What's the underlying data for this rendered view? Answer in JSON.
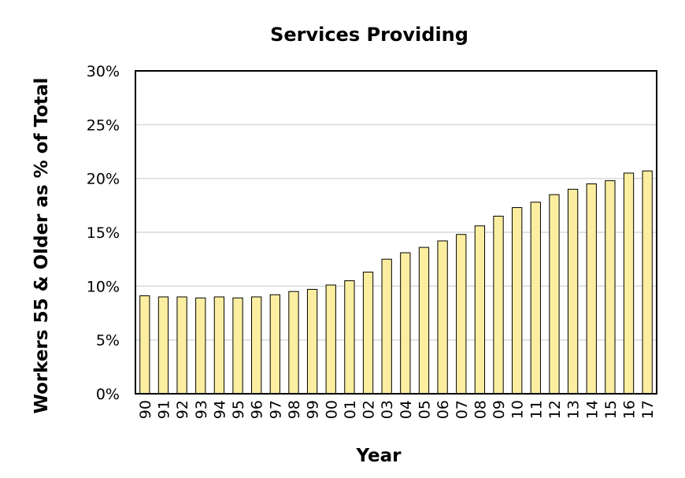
{
  "chart_data": {
    "type": "bar",
    "title": "Services Providing",
    "xlabel": "Year",
    "ylabel": "Workers 55 & Older as % of Total",
    "categories": [
      "90",
      "91",
      "92",
      "93",
      "94",
      "95",
      "96",
      "97",
      "98",
      "99",
      "00",
      "01",
      "02",
      "03",
      "04",
      "05",
      "06",
      "07",
      "08",
      "09",
      "10",
      "11",
      "12",
      "13",
      "14",
      "15",
      "16",
      "17"
    ],
    "values": [
      9.1,
      9.0,
      9.0,
      8.9,
      9.0,
      8.9,
      9.0,
      9.2,
      9.5,
      9.7,
      10.1,
      10.5,
      11.3,
      12.5,
      13.1,
      13.6,
      14.2,
      14.8,
      15.6,
      16.5,
      17.3,
      17.8,
      18.5,
      19.0,
      19.5,
      19.8,
      20.5,
      20.7
    ],
    "yticks": [
      "0%",
      "5%",
      "10%",
      "15%",
      "20%",
      "25%",
      "30%"
    ],
    "ylim": [
      0,
      30
    ],
    "grid": true,
    "legend": "none",
    "colors": {
      "bar_fill": "#fbeea0",
      "bar_stroke": "#000000",
      "grid": "#d9d9d9"
    }
  }
}
